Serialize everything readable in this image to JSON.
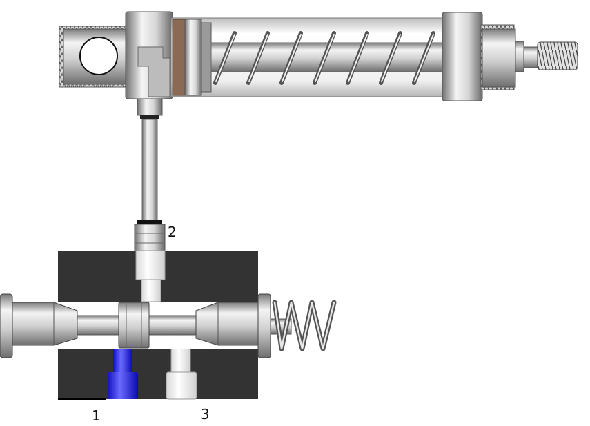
{
  "diagram": {
    "ports": [
      {
        "id": "1",
        "label": "1"
      },
      {
        "id": "2",
        "label": "2"
      },
      {
        "id": "3",
        "label": "3"
      }
    ]
  },
  "colors": {
    "pressure_highlight": "#1a1aff",
    "valve_body": "#333333",
    "metal_light": "#f2f2f2",
    "metal_dark": "#8a8a8a",
    "seal_brown": "#8b6a55"
  },
  "components": {
    "cylinder": "single-acting-spring-return-cylinder",
    "valve": "3-2-way-valve-spring-return"
  }
}
